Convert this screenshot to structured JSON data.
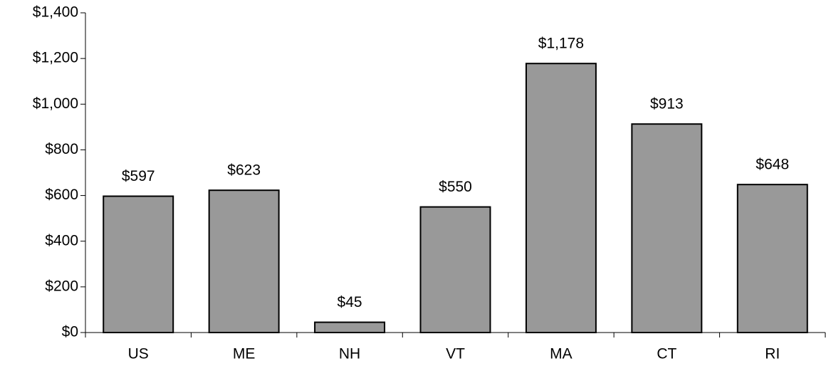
{
  "chart_data": {
    "type": "bar",
    "categories": [
      "US",
      "ME",
      "NH",
      "VT",
      "MA",
      "CT",
      "RI"
    ],
    "values": [
      597,
      623,
      45,
      550,
      1178,
      913,
      648
    ],
    "value_labels": [
      "$597",
      "$623",
      "$45",
      "$550",
      "$1,178",
      "$913",
      "$648"
    ],
    "color": "#999999",
    "ylim": [
      0,
      1400
    ],
    "yticks": [
      {
        "value": 0,
        "label": "$0"
      },
      {
        "value": 200,
        "label": "$200"
      },
      {
        "value": 400,
        "label": "$400"
      },
      {
        "value": 600,
        "label": "$600"
      },
      {
        "value": 800,
        "label": "$800"
      },
      {
        "value": 1000,
        "label": "$1,000"
      },
      {
        "value": 1200,
        "label": "$1,200"
      },
      {
        "value": 1400,
        "label": "$1,400"
      }
    ],
    "grid": false
  }
}
